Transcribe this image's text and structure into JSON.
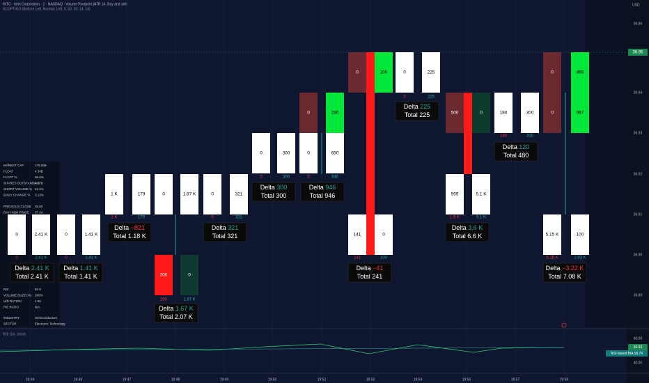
{
  "header": {
    "symbol_line": "INTC · Intel Corporation · 1 · NASDAQ · Volume Footprint [ATR 14, Buy and sell]",
    "indicator_line": "SCOPTIGO (Bottom Left, Normal, Left, 0, 50, 20, 14, 14)"
  },
  "price_axis": {
    "currency": "USD",
    "last_price": "36.95",
    "labels": [
      "36.96",
      "36.94",
      "36.93",
      "36.92",
      "36.91",
      "36.90",
      "36.89"
    ]
  },
  "time_axis": [
    "19:44",
    "19:46",
    "19:47",
    "19:48",
    "19:49",
    "19:50",
    "19:52",
    "19:53",
    "19:54",
    "19:56",
    "19:57",
    "19:59"
  ],
  "footprint": {
    "delta_label": "Delta",
    "total_label": "Total",
    "bars": [
      {
        "cells": [
          [
            "0",
            "2.41 K"
          ]
        ],
        "bottom": [
          "0",
          "2.41 K"
        ],
        "delta": "2.41 K",
        "total": "2.41 K"
      },
      {
        "cells": [
          [
            "0",
            "1.41 K"
          ]
        ],
        "bottom": [
          "0",
          "1.41 K"
        ],
        "delta": "1.41 K",
        "total": "1.41 K"
      },
      {
        "cells": [
          [
            "1 K",
            "179"
          ]
        ],
        "bottom": [
          "1 K",
          "179"
        ],
        "delta": "−821",
        "total": "1.18 K"
      },
      {
        "cells": [
          [
            "0",
            "1.87 K"
          ],
          [
            "200",
            "0"
          ]
        ],
        "bottom": [
          "200",
          "1.87 K"
        ],
        "delta": "1.67 K",
        "total": "2.07 K"
      },
      {
        "cells": [
          [
            "0",
            "321"
          ]
        ],
        "bottom": [
          "0",
          "321"
        ],
        "delta": "321",
        "total": "321"
      },
      {
        "cells": [
          [
            "0",
            "300"
          ]
        ],
        "bottom": [
          "0",
          "300"
        ],
        "delta": "300",
        "total": "300"
      },
      {
        "cells": [
          [
            "0",
            "296"
          ],
          [
            "0",
            "650"
          ]
        ],
        "bottom": [
          "0",
          "946"
        ],
        "delta": "946",
        "total": "946"
      },
      {
        "cells": [
          [
            "0",
            "100"
          ],
          [
            "141",
            "0"
          ]
        ],
        "bottom": [
          "141",
          "100"
        ],
        "delta": "−41",
        "total": "241"
      },
      {
        "cells": [
          [
            "0",
            "225"
          ]
        ],
        "bottom": [
          "0",
          "225"
        ],
        "delta": "225",
        "total": "225"
      },
      {
        "cells": [
          [
            "500",
            "0"
          ],
          [
            "999",
            "5.1 K"
          ]
        ],
        "bottom": [
          "1.5 K",
          "5.1 K"
        ],
        "delta": "3.6 K",
        "total": "6.6 K"
      },
      {
        "cells": [
          [
            "180",
            "300"
          ]
        ],
        "bottom": [
          "180",
          "300"
        ],
        "delta": "120",
        "total": "480"
      },
      {
        "cells": [
          [
            "0",
            "866"
          ],
          [
            "0",
            "967"
          ],
          [
            "5.15 K",
            "100"
          ]
        ],
        "bottom": [
          "5.15 K",
          "1.93 K"
        ],
        "delta": "−3.22 K",
        "total": "7.08 K"
      }
    ]
  },
  "fundamentals": [
    [
      [
        "MARKET CAP",
        "175.58B"
      ],
      [
        "FLOAT",
        "4.34B"
      ],
      [
        "FLOAT %",
        "99.0%"
      ],
      [
        "SHARES OUTSTANDING",
        "4.37B"
      ],
      [
        "SHORT VOLUME %",
        "21.2%"
      ],
      [
        "DAILY CHANGE %",
        "3.13%"
      ]
    ],
    [
      [
        "PREVIOUS CLOSE",
        "35.83"
      ],
      [
        "DAY HIGH PRICE",
        "37.24"
      ]
    ],
    [
      [
        "RSI",
        "60.9"
      ],
      [
        "VOLUME BUZZ (%)",
        "280%"
      ],
      [
        "U/D RATION",
        "1.98"
      ],
      [
        "P/E RATIO",
        "N/A"
      ]
    ],
    [
      [
        "INDUSTRY",
        "Semiconductors"
      ],
      [
        "SECTOR",
        "Electronic Technology"
      ]
    ]
  ],
  "rsi": {
    "title": "RSI (14, close)",
    "value": "60.93",
    "ma": "RSI-based MA 58.74",
    "levels": [
      "60.00",
      "40.00"
    ]
  }
}
